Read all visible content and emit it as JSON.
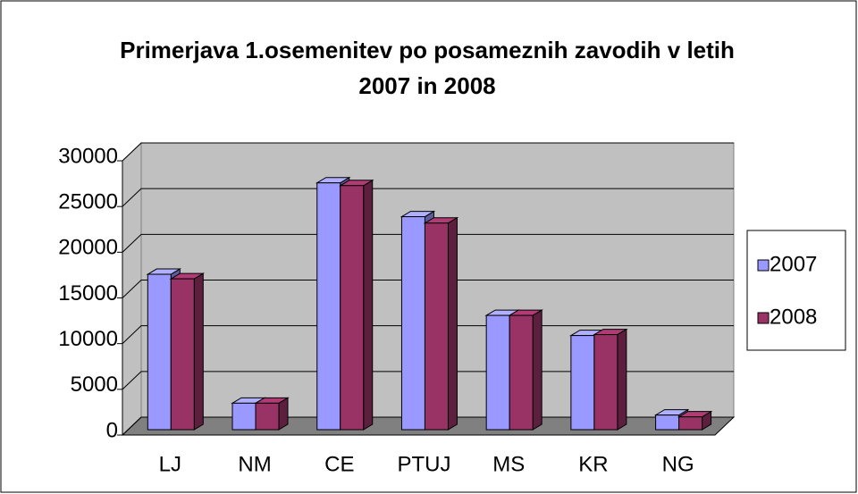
{
  "chart_data": {
    "type": "bar3d",
    "title": "Primerjava 1.osemenitev po posameznih zavodih v letih 2007 in 2008",
    "categories": [
      "LJ",
      "NM",
      "CE",
      "PTUJ",
      "MS",
      "KR",
      "NG"
    ],
    "series": [
      {
        "name": "2007",
        "color": "#9999ff",
        "values": [
          17000,
          2900,
          27000,
          23300,
          12500,
          10300,
          1600
        ]
      },
      {
        "name": "2008",
        "color": "#993366",
        "values": [
          16500,
          2900,
          26700,
          22600,
          12500,
          10400,
          1400
        ]
      }
    ],
    "ylim": [
      0,
      30000
    ],
    "yticks": [
      0,
      5000,
      10000,
      15000,
      20000,
      25000,
      30000
    ],
    "grid": true,
    "legend": "right"
  }
}
